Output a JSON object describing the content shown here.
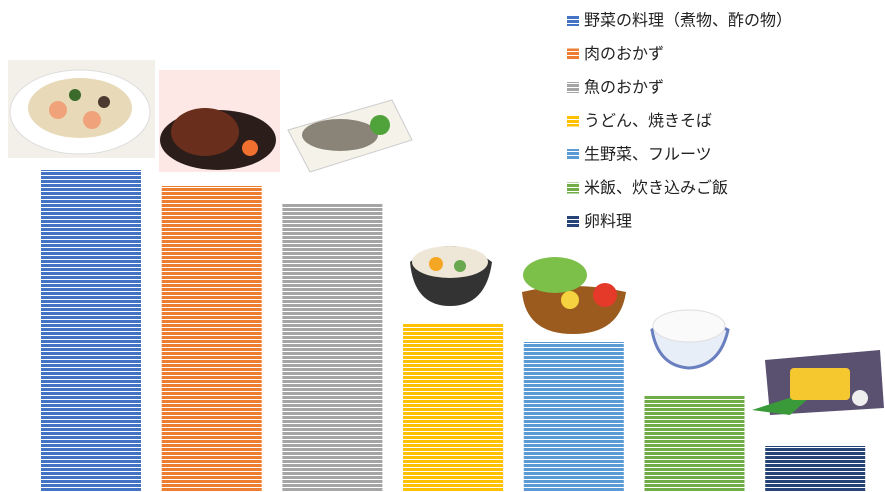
{
  "chart_data": {
    "type": "bar",
    "series": [
      {
        "name": "野菜の料理（煮物、酢の物）",
        "color": "#4472c4",
        "values": [
          322
        ]
      },
      {
        "name": "肉のおかず",
        "color": "#ed7d31",
        "values": [
          306
        ]
      },
      {
        "name": "魚のおかず",
        "color": "#a5a5a5",
        "values": [
          288
        ]
      },
      {
        "name": "うどん、焼きそば",
        "color": "#ffc000",
        "values": [
          168
        ]
      },
      {
        "name": "生野菜、フルーツ",
        "color": "#5b9bd5",
        "values": [
          150
        ]
      },
      {
        "name": "米飯、炊き込みご飯",
        "color": "#70ad47",
        "values": [
          97
        ]
      },
      {
        "name": "卵料理",
        "color": "#264478",
        "values": [
          46
        ]
      }
    ]
  }
}
